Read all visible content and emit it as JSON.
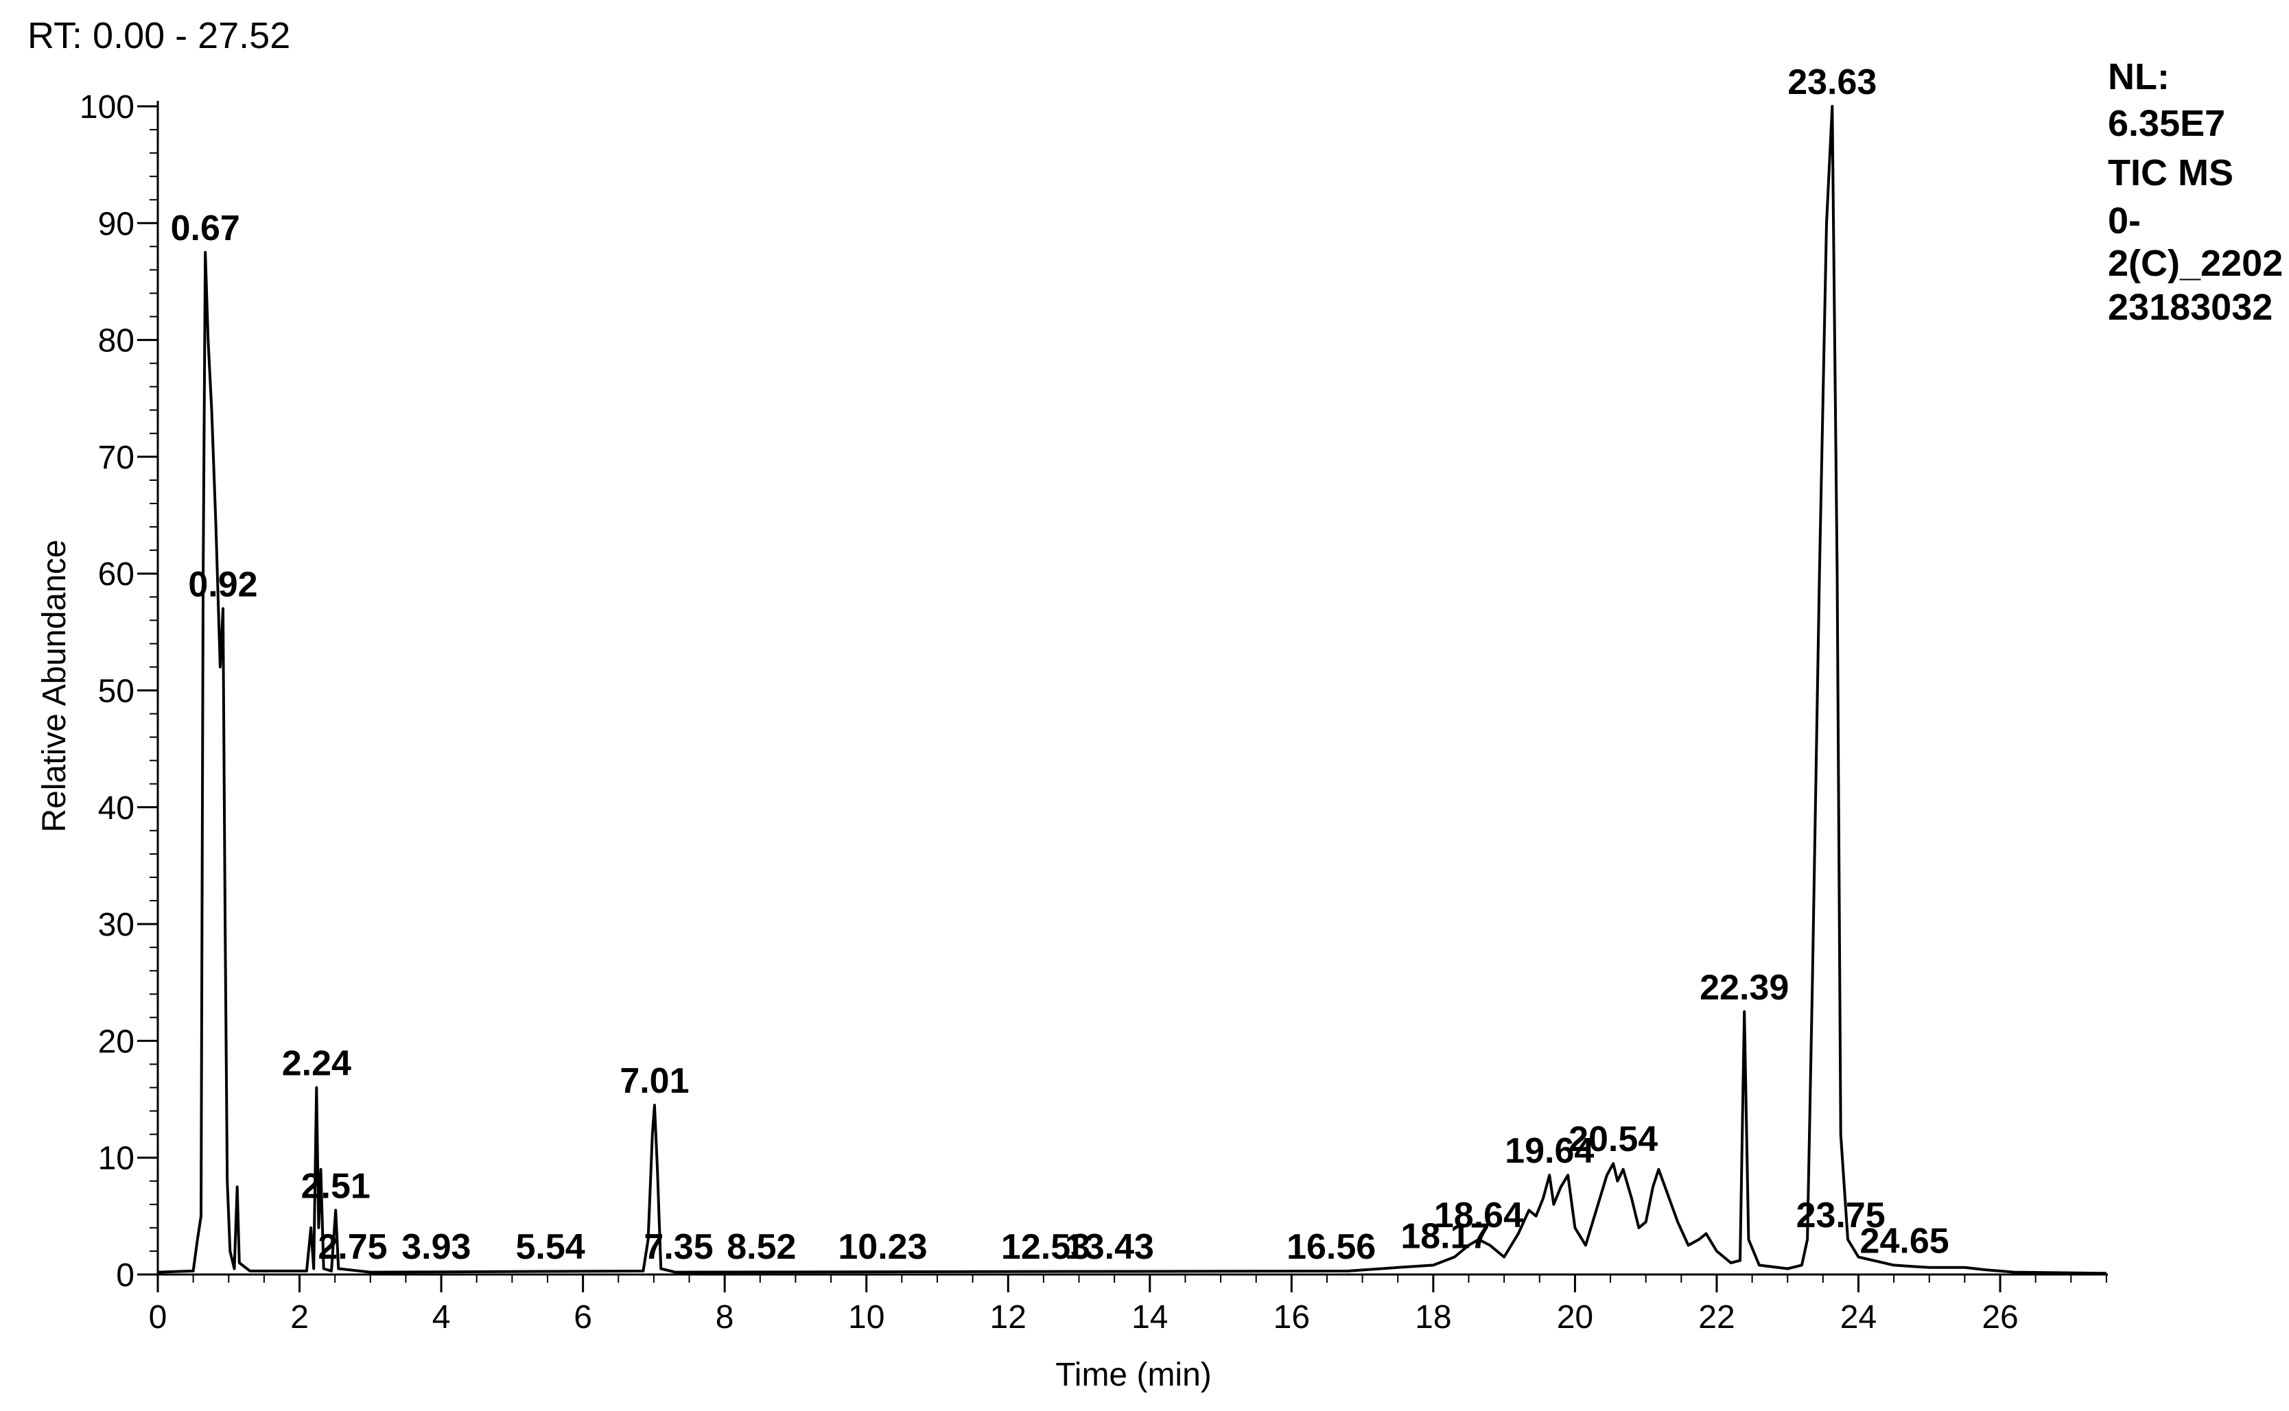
{
  "header": {
    "rt_range": "RT: 0.00 - 27.52"
  },
  "info": {
    "lines": [
      "NL:",
      "6.35E7",
      "TIC  MS",
      "0-",
      "2(C)_2202",
      "23183032"
    ]
  },
  "chart_data": {
    "type": "line",
    "xlabel": "Time (min)",
    "ylabel": "Relative Abundance",
    "xlim": [
      0,
      27.52
    ],
    "ylim": [
      0,
      100
    ],
    "x_ticks": [
      0,
      2,
      4,
      6,
      8,
      10,
      12,
      14,
      16,
      18,
      20,
      22,
      24,
      26
    ],
    "y_ticks": [
      0,
      10,
      20,
      30,
      40,
      50,
      60,
      70,
      80,
      90,
      100
    ],
    "grid": false,
    "series": [
      {
        "color": "#000000",
        "points": [
          [
            0.0,
            0.2
          ],
          [
            0.5,
            0.3
          ],
          [
            0.56,
            3.0
          ],
          [
            0.61,
            5.0
          ],
          [
            0.64,
            60.0
          ],
          [
            0.67,
            87.5
          ],
          [
            0.71,
            80.0
          ],
          [
            0.76,
            74.0
          ],
          [
            0.82,
            64.0
          ],
          [
            0.88,
            52.0
          ],
          [
            0.92,
            57.0
          ],
          [
            0.95,
            30.0
          ],
          [
            0.98,
            8.0
          ],
          [
            1.02,
            2.0
          ],
          [
            1.08,
            0.5
          ],
          [
            1.1,
            4.0
          ],
          [
            1.12,
            7.5
          ],
          [
            1.15,
            1.0
          ],
          [
            1.3,
            0.3
          ],
          [
            2.1,
            0.3
          ],
          [
            2.16,
            4.0
          ],
          [
            2.2,
            0.5
          ],
          [
            2.24,
            16.0
          ],
          [
            2.27,
            4.0
          ],
          [
            2.3,
            9.0
          ],
          [
            2.34,
            0.5
          ],
          [
            2.45,
            0.3
          ],
          [
            2.51,
            5.5
          ],
          [
            2.55,
            0.5
          ],
          [
            3.0,
            0.2
          ],
          [
            6.85,
            0.3
          ],
          [
            6.92,
            3.0
          ],
          [
            6.98,
            12.0
          ],
          [
            7.01,
            14.5
          ],
          [
            7.05,
            9.0
          ],
          [
            7.1,
            0.5
          ],
          [
            7.3,
            0.2
          ],
          [
            16.8,
            0.3
          ],
          [
            17.5,
            0.6
          ],
          [
            18.0,
            0.8
          ],
          [
            18.3,
            1.5
          ],
          [
            18.5,
            2.5
          ],
          [
            18.64,
            3.0
          ],
          [
            18.8,
            2.5
          ],
          [
            19.0,
            1.5
          ],
          [
            19.2,
            3.5
          ],
          [
            19.35,
            5.5
          ],
          [
            19.45,
            5.0
          ],
          [
            19.55,
            6.5
          ],
          [
            19.64,
            8.5
          ],
          [
            19.7,
            6.0
          ],
          [
            19.8,
            7.5
          ],
          [
            19.9,
            8.5
          ],
          [
            20.0,
            4.0
          ],
          [
            20.15,
            2.5
          ],
          [
            20.3,
            5.5
          ],
          [
            20.45,
            8.5
          ],
          [
            20.54,
            9.5
          ],
          [
            20.6,
            8.0
          ],
          [
            20.68,
            9.0
          ],
          [
            20.8,
            6.5
          ],
          [
            20.9,
            4.0
          ],
          [
            21.0,
            4.5
          ],
          [
            21.1,
            7.5
          ],
          [
            21.18,
            9.0
          ],
          [
            21.3,
            7.0
          ],
          [
            21.45,
            4.5
          ],
          [
            21.6,
            2.5
          ],
          [
            21.75,
            3.0
          ],
          [
            21.85,
            3.5
          ],
          [
            22.0,
            2.0
          ],
          [
            22.2,
            1.0
          ],
          [
            22.33,
            1.2
          ],
          [
            22.39,
            22.5
          ],
          [
            22.45,
            3.0
          ],
          [
            22.6,
            0.8
          ],
          [
            23.0,
            0.5
          ],
          [
            23.2,
            0.8
          ],
          [
            23.28,
            3.0
          ],
          [
            23.35,
            25.0
          ],
          [
            23.45,
            60.0
          ],
          [
            23.55,
            90.0
          ],
          [
            23.63,
            100.0
          ],
          [
            23.7,
            60.0
          ],
          [
            23.75,
            12.0
          ],
          [
            23.85,
            3.0
          ],
          [
            24.0,
            1.5
          ],
          [
            24.5,
            0.8
          ],
          [
            25.0,
            0.6
          ],
          [
            25.5,
            0.6
          ],
          [
            25.8,
            0.4
          ],
          [
            26.2,
            0.2
          ],
          [
            27.5,
            0.1
          ]
        ]
      }
    ],
    "peaks": [
      {
        "x": 0.67,
        "y": 87.5,
        "label": "0.67"
      },
      {
        "x": 0.92,
        "y": 57.0,
        "label": "0.92"
      },
      {
        "x": 2.24,
        "y": 16.0,
        "label": "2.24"
      },
      {
        "x": 2.51,
        "y": 5.5,
        "label": "2.51"
      },
      {
        "x": 2.75,
        "y": 0.3,
        "label": "2.75"
      },
      {
        "x": 3.93,
        "y": 0.3,
        "label": "3.93"
      },
      {
        "x": 5.54,
        "y": 0.3,
        "label": "5.54"
      },
      {
        "x": 7.01,
        "y": 14.5,
        "label": "7.01"
      },
      {
        "x": 7.35,
        "y": 0.3,
        "label": "7.35"
      },
      {
        "x": 8.52,
        "y": 0.3,
        "label": "8.52"
      },
      {
        "x": 10.23,
        "y": 0.3,
        "label": "10.23"
      },
      {
        "x": 12.53,
        "y": 0.3,
        "label": "12.53"
      },
      {
        "x": 13.43,
        "y": 0.3,
        "label": "13.43"
      },
      {
        "x": 16.56,
        "y": 0.3,
        "label": "16.56"
      },
      {
        "x": 18.17,
        "y": 1.2,
        "label": "18.17"
      },
      {
        "x": 18.64,
        "y": 3.0,
        "label": "18.64"
      },
      {
        "x": 19.64,
        "y": 8.5,
        "label": "19.64"
      },
      {
        "x": 20.54,
        "y": 9.5,
        "label": "20.54"
      },
      {
        "x": 22.39,
        "y": 22.5,
        "label": "22.39"
      },
      {
        "x": 23.63,
        "y": 100.0,
        "label": "23.63"
      },
      {
        "x": 23.75,
        "y": 3.0,
        "label": "23.75"
      },
      {
        "x": 24.65,
        "y": 0.8,
        "label": "24.65"
      }
    ]
  }
}
